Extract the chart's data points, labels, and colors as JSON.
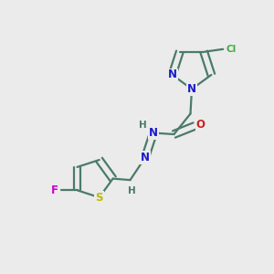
{
  "background_color": "#ebebeb",
  "bond_color": "#4a7a6a",
  "bond_width": 1.6,
  "atom_colors": {
    "N": "#1a1acc",
    "O": "#cc2020",
    "S": "#bbbb00",
    "F": "#cc00cc",
    "Cl": "#44aa44",
    "H": "#4a7a6a"
  },
  "font_size": 8.5,
  "font_size_small": 7.5,
  "dbo": 0.13
}
